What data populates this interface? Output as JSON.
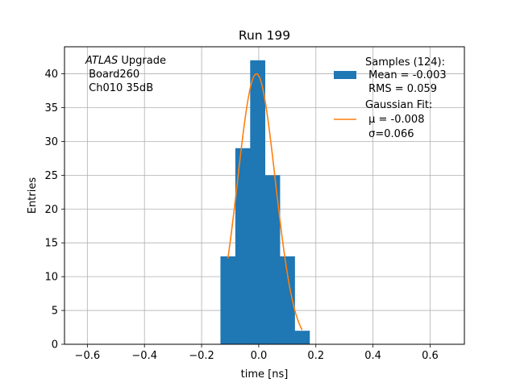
{
  "chart_data": {
    "type": "bar",
    "title": "Run 199",
    "xlabel": "time [ns]",
    "ylabel": "Entries",
    "xlim": [
      -0.68,
      0.72
    ],
    "ylim": [
      0,
      44
    ],
    "grid": true,
    "xticks": [
      -0.6,
      -0.4,
      -0.2,
      0.0,
      0.2,
      0.4,
      0.6
    ],
    "xtick_labels": [
      "−0.6",
      "−0.4",
      "−0.2",
      "0.0",
      "0.2",
      "0.4",
      "0.6"
    ],
    "yticks": [
      0,
      5,
      10,
      15,
      20,
      25,
      30,
      35,
      40
    ],
    "ytick_labels": [
      "0",
      "5",
      "10",
      "15",
      "20",
      "25",
      "30",
      "35",
      "40"
    ],
    "histogram": {
      "name": "Samples (124):",
      "color": "#1f77b4",
      "bin_edges": [
        -0.134,
        -0.082,
        -0.03,
        0.022,
        0.074,
        0.126,
        0.178
      ],
      "counts": [
        13,
        29,
        42,
        25,
        13,
        2
      ]
    },
    "fit": {
      "name": "Gaussian Fit:",
      "color": "#ff7f0e",
      "amplitude": 40,
      "mu": -0.008,
      "sigma": 0.066,
      "x_range": [
        -0.108,
        0.152
      ]
    },
    "legend": {
      "placement": "top-right",
      "entries": [
        {
          "lines": [
            "Samples (124):",
            " Mean = -0.003",
            " RMS = 0.059"
          ]
        },
        {
          "lines": [
            "Gaussian Fit:",
            " μ = -0.008",
            " σ=0.066"
          ]
        }
      ]
    },
    "annotation": {
      "placement": "top-left",
      "italic_part": "ATLAS",
      "rest_first_line": " Upgrade",
      "lines": [
        " Board260",
        " Ch010 35dB"
      ]
    }
  }
}
